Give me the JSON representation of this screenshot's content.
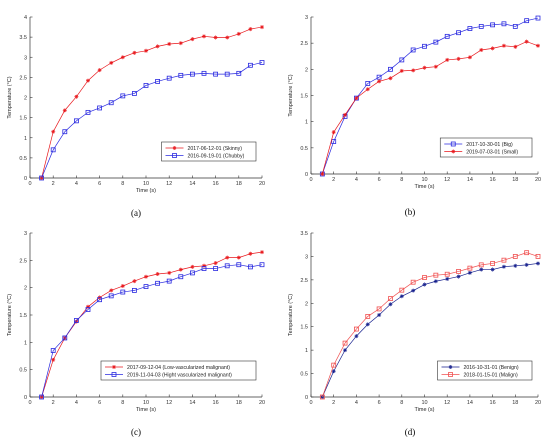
{
  "colors": {
    "red": "#e8161b",
    "blue": "#2a2ae0",
    "navy": "#141e8c",
    "red2": "#f05050"
  },
  "chart_data": [
    {
      "type": "line",
      "panel_label": "(a)",
      "xlabel": "Time (s)",
      "ylabel": "Temperature (°C)",
      "xlim": [
        0,
        20
      ],
      "ylim": [
        0,
        4
      ],
      "xticks": [
        "0",
        "2",
        "4",
        "6",
        "8",
        "10",
        "12",
        "14",
        "16",
        "18",
        "20"
      ],
      "yticks": [
        "0",
        "0.5",
        "1",
        "1.5",
        "2",
        "2.5",
        "3",
        "3.5",
        "4"
      ],
      "legend_position": "bottom-right",
      "x": [
        1,
        2,
        3,
        4,
        5,
        6,
        7,
        8,
        9,
        10,
        11,
        12,
        13,
        14,
        15,
        16,
        17,
        18,
        19,
        20
      ],
      "series": [
        {
          "name": "2017-06-12-01 (Skinny)",
          "color": "red",
          "marker": "star",
          "values": [
            0,
            1.15,
            1.68,
            2.02,
            2.42,
            2.68,
            2.86,
            3.0,
            3.11,
            3.16,
            3.27,
            3.33,
            3.35,
            3.45,
            3.52,
            3.49,
            3.49,
            3.58,
            3.7,
            3.75
          ]
        },
        {
          "name": "2016-09-19-01 (Chubby)",
          "color": "blue",
          "marker": "square",
          "values": [
            0,
            0.7,
            1.15,
            1.42,
            1.63,
            1.74,
            1.87,
            2.04,
            2.1,
            2.3,
            2.4,
            2.48,
            2.55,
            2.58,
            2.6,
            2.58,
            2.58,
            2.6,
            2.8,
            2.87
          ]
        }
      ]
    },
    {
      "type": "line",
      "panel_label": "(b)",
      "xlabel": "Time (s)",
      "ylabel": "Temperature (°C)",
      "xlim": [
        0,
        20
      ],
      "ylim": [
        0,
        3
      ],
      "xticks": [
        "0",
        "2",
        "4",
        "6",
        "8",
        "10",
        "12",
        "14",
        "16",
        "18",
        "20"
      ],
      "yticks": [
        "0",
        "0.5",
        "1",
        "1.5",
        "2",
        "2.5",
        "3"
      ],
      "legend_position": "bottom-right",
      "x": [
        1,
        2,
        3,
        4,
        5,
        6,
        7,
        8,
        9,
        10,
        11,
        12,
        13,
        14,
        15,
        16,
        17,
        18,
        19,
        20
      ],
      "series": [
        {
          "name": "2017-10-30-01 (Big)",
          "color": "blue",
          "marker": "square",
          "values": [
            0,
            0.62,
            1.1,
            1.45,
            1.73,
            1.85,
            2.0,
            2.18,
            2.37,
            2.44,
            2.52,
            2.63,
            2.7,
            2.78,
            2.82,
            2.85,
            2.87,
            2.82,
            2.93,
            2.98
          ]
        },
        {
          "name": "2019-07-03-01 (Small)",
          "color": "red",
          "marker": "star",
          "values": [
            0,
            0.8,
            1.13,
            1.45,
            1.62,
            1.77,
            1.83,
            1.97,
            1.98,
            2.03,
            2.05,
            2.18,
            2.2,
            2.23,
            2.37,
            2.4,
            2.45,
            2.43,
            2.53,
            2.45
          ]
        }
      ]
    },
    {
      "type": "line",
      "panel_label": "(c)",
      "xlabel": "Time (s)",
      "ylabel": "Temperature (°C)",
      "xlim": [
        0,
        20
      ],
      "ylim": [
        0,
        3
      ],
      "xticks": [
        "0",
        "2",
        "4",
        "6",
        "8",
        "10",
        "12",
        "14",
        "16",
        "18",
        "20"
      ],
      "yticks": [
        "0",
        "0.5",
        "1",
        "1.5",
        "2",
        "2.5",
        "3"
      ],
      "legend_position": "bottom-right",
      "x": [
        1,
        2,
        3,
        4,
        5,
        6,
        7,
        8,
        9,
        10,
        11,
        12,
        13,
        14,
        15,
        16,
        17,
        18,
        19,
        20
      ],
      "series": [
        {
          "name": "2017-09-12-04 (Low-vascularized malignant)",
          "color": "red",
          "marker": "star",
          "values": [
            0,
            0.68,
            1.08,
            1.38,
            1.65,
            1.82,
            1.95,
            2.03,
            2.12,
            2.2,
            2.25,
            2.27,
            2.33,
            2.38,
            2.4,
            2.45,
            2.55,
            2.55,
            2.62,
            2.65
          ]
        },
        {
          "name": "2019-11-04-03 (Hight vascularized malignant)",
          "color": "blue",
          "marker": "square",
          "values": [
            0,
            0.85,
            1.08,
            1.4,
            1.6,
            1.78,
            1.85,
            1.92,
            1.95,
            2.02,
            2.08,
            2.12,
            2.2,
            2.27,
            2.35,
            2.35,
            2.4,
            2.42,
            2.38,
            2.42
          ]
        }
      ]
    },
    {
      "type": "line",
      "panel_label": "(d)",
      "xlabel": "Time (s)",
      "ylabel": "Temperature (°C)",
      "xlim": [
        0,
        20
      ],
      "ylim": [
        0,
        3.5
      ],
      "xticks": [
        "0",
        "2",
        "4",
        "6",
        "8",
        "10",
        "12",
        "14",
        "16",
        "18",
        "20"
      ],
      "yticks": [
        "0",
        "0.5",
        "1",
        "1.5",
        "2",
        "2.5",
        "3",
        "3.5"
      ],
      "legend_position": "bottom-right",
      "x": [
        1,
        2,
        3,
        4,
        5,
        6,
        7,
        8,
        9,
        10,
        11,
        12,
        13,
        14,
        15,
        16,
        17,
        18,
        19,
        20
      ],
      "series": [
        {
          "name": "2016-10-31-01 (Benign)",
          "color": "navy",
          "marker": "star",
          "values": [
            0,
            0.55,
            1.0,
            1.3,
            1.55,
            1.75,
            1.98,
            2.15,
            2.27,
            2.4,
            2.47,
            2.52,
            2.57,
            2.65,
            2.72,
            2.72,
            2.78,
            2.8,
            2.82,
            2.85
          ]
        },
        {
          "name": "2018-01-15-01 (Malign)",
          "color": "red2",
          "marker": "square",
          "values": [
            0,
            0.68,
            1.15,
            1.45,
            1.72,
            1.88,
            2.1,
            2.28,
            2.45,
            2.55,
            2.6,
            2.62,
            2.68,
            2.75,
            2.82,
            2.85,
            2.92,
            3.0,
            3.08,
            3.0
          ]
        }
      ]
    }
  ]
}
